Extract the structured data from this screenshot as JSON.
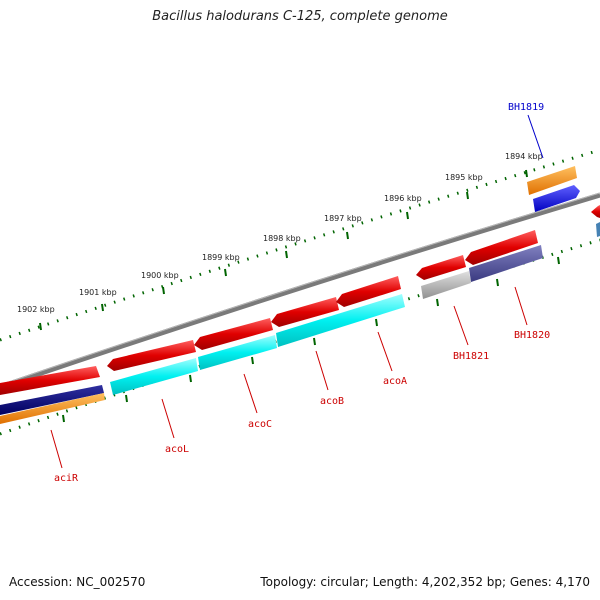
{
  "title": "Bacillus halodurans C-125, complete genome",
  "footer": {
    "accession": "Accession: NC_002570",
    "summary": "Topology: circular; Length: 4,202,352 bp; Genes: 4,170"
  },
  "scale_ticks": [
    "1902 kbp",
    "1901 kbp",
    "1900 kbp",
    "1899 kbp",
    "1898 kbp",
    "1897 kbp",
    "1896 kbp",
    "1895 kbp",
    "1894 kbp"
  ],
  "gene_labels": {
    "BH1819": "BH1819",
    "BH1820": "BH1820",
    "BH1821": "BH1821",
    "acoA": "acoA",
    "acoB": "acoB",
    "acoC": "acoC",
    "acoL": "acoL",
    "aciR": "aciR"
  },
  "colors": {
    "gene_red": "#e00000",
    "cyan": "#00f0f0",
    "navy": "#000080",
    "orange": "#ff8c00",
    "blue": "#0000ff",
    "slate": "#4a4a9a",
    "grey": "#aaaaaa",
    "backbone": "#808080",
    "tick_green": "#006400",
    "label_red": "#cc0000",
    "label_blue": "#0000cc"
  }
}
